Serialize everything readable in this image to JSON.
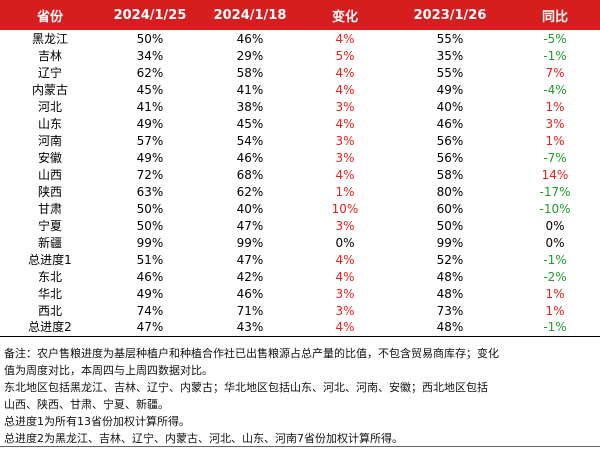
{
  "colors": {
    "header_bg": "#d71e1e",
    "header_text": "#ffffff",
    "up": "#e0221d",
    "down": "#1e9a2e"
  },
  "headers": [
    "省份",
    "2024/1/25",
    "2024/1/18",
    "变化",
    "2023/1/26",
    "同比"
  ],
  "rows": [
    {
      "province": "黑龙江",
      "d1": "50%",
      "d2": "46%",
      "chg": "4%",
      "chg_color": "red",
      "d3": "55%",
      "yoy": "-5%",
      "yoy_color": "green"
    },
    {
      "province": "吉林",
      "d1": "34%",
      "d2": "29%",
      "chg": "5%",
      "chg_color": "red",
      "d3": "35%",
      "yoy": "-1%",
      "yoy_color": "green"
    },
    {
      "province": "辽宁",
      "d1": "62%",
      "d2": "58%",
      "chg": "4%",
      "chg_color": "red",
      "d3": "55%",
      "yoy": "7%",
      "yoy_color": "red"
    },
    {
      "province": "内蒙古",
      "d1": "45%",
      "d2": "41%",
      "chg": "4%",
      "chg_color": "red",
      "d3": "49%",
      "yoy": "-4%",
      "yoy_color": "green"
    },
    {
      "province": "河北",
      "d1": "41%",
      "d2": "38%",
      "chg": "3%",
      "chg_color": "red",
      "d3": "40%",
      "yoy": "1%",
      "yoy_color": "red"
    },
    {
      "province": "山东",
      "d1": "49%",
      "d2": "45%",
      "chg": "4%",
      "chg_color": "red",
      "d3": "46%",
      "yoy": "3%",
      "yoy_color": "red"
    },
    {
      "province": "河南",
      "d1": "57%",
      "d2": "54%",
      "chg": "3%",
      "chg_color": "red",
      "d3": "56%",
      "yoy": "1%",
      "yoy_color": "red"
    },
    {
      "province": "安徽",
      "d1": "49%",
      "d2": "46%",
      "chg": "3%",
      "chg_color": "red",
      "d3": "56%",
      "yoy": "-7%",
      "yoy_color": "green"
    },
    {
      "province": "山西",
      "d1": "72%",
      "d2": "68%",
      "chg": "4%",
      "chg_color": "red",
      "d3": "58%",
      "yoy": "14%",
      "yoy_color": "red"
    },
    {
      "province": "陕西",
      "d1": "63%",
      "d2": "62%",
      "chg": "1%",
      "chg_color": "red",
      "d3": "80%",
      "yoy": "-17%",
      "yoy_color": "green"
    },
    {
      "province": "甘肃",
      "d1": "50%",
      "d2": "40%",
      "chg": "10%",
      "chg_color": "red",
      "d3": "60%",
      "yoy": "-10%",
      "yoy_color": "green"
    },
    {
      "province": "宁夏",
      "d1": "50%",
      "d2": "47%",
      "chg": "3%",
      "chg_color": "red",
      "d3": "50%",
      "yoy": "0%",
      "yoy_color": "black"
    },
    {
      "province": "新疆",
      "d1": "99%",
      "d2": "99%",
      "chg": "0%",
      "chg_color": "black",
      "d3": "99%",
      "yoy": "0%",
      "yoy_color": "black"
    },
    {
      "province": "总进度1",
      "d1": "51%",
      "d2": "47%",
      "chg": "4%",
      "chg_color": "red",
      "d3": "52%",
      "yoy": "-1%",
      "yoy_color": "green"
    },
    {
      "province": "东北",
      "d1": "46%",
      "d2": "42%",
      "chg": "4%",
      "chg_color": "red",
      "d3": "48%",
      "yoy": "-2%",
      "yoy_color": "green"
    },
    {
      "province": "华北",
      "d1": "49%",
      "d2": "46%",
      "chg": "3%",
      "chg_color": "red",
      "d3": "48%",
      "yoy": "1%",
      "yoy_color": "red"
    },
    {
      "province": "西北",
      "d1": "74%",
      "d2": "71%",
      "chg": "3%",
      "chg_color": "red",
      "d3": "73%",
      "yoy": "1%",
      "yoy_color": "red"
    },
    {
      "province": "总进度2",
      "d1": "47%",
      "d2": "43%",
      "chg": "4%",
      "chg_color": "red",
      "d3": "48%",
      "yoy": "-1%",
      "yoy_color": "green"
    }
  ],
  "notes": [
    "备注：农户售粮进度为基层种植户和种植合作社已出售粮源占总产量的比值，不包含贸易商库存；变化",
    "值为周度对比，本周四与上周四数据对比。",
    "东北地区包括黑龙江、吉林、辽宁、内蒙古；华北地区包括山东、河北、河南、安徽；西北地区包括",
    "山西、陕西、甘肃、宁夏、新疆。",
    "总进度1为所有13省份加权计算所得。",
    "总进度2为黑龙江、吉林、辽宁、内蒙古、河北、山东、河南7省份加权计算所得。"
  ]
}
